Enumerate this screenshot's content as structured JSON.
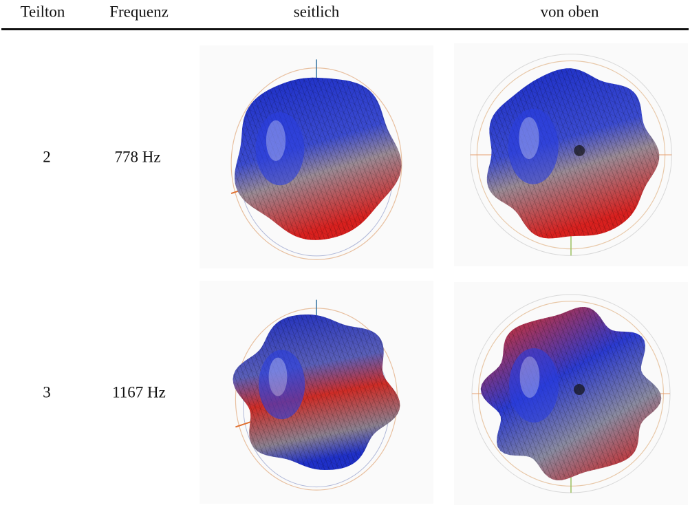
{
  "table": {
    "headers": [
      "Teilton",
      "Frequenz",
      "seitlich",
      "von oben"
    ],
    "rows": [
      [
        "2",
        "778 Hz"
      ],
      [
        "3",
        "1167 Hz"
      ]
    ]
  }
}
